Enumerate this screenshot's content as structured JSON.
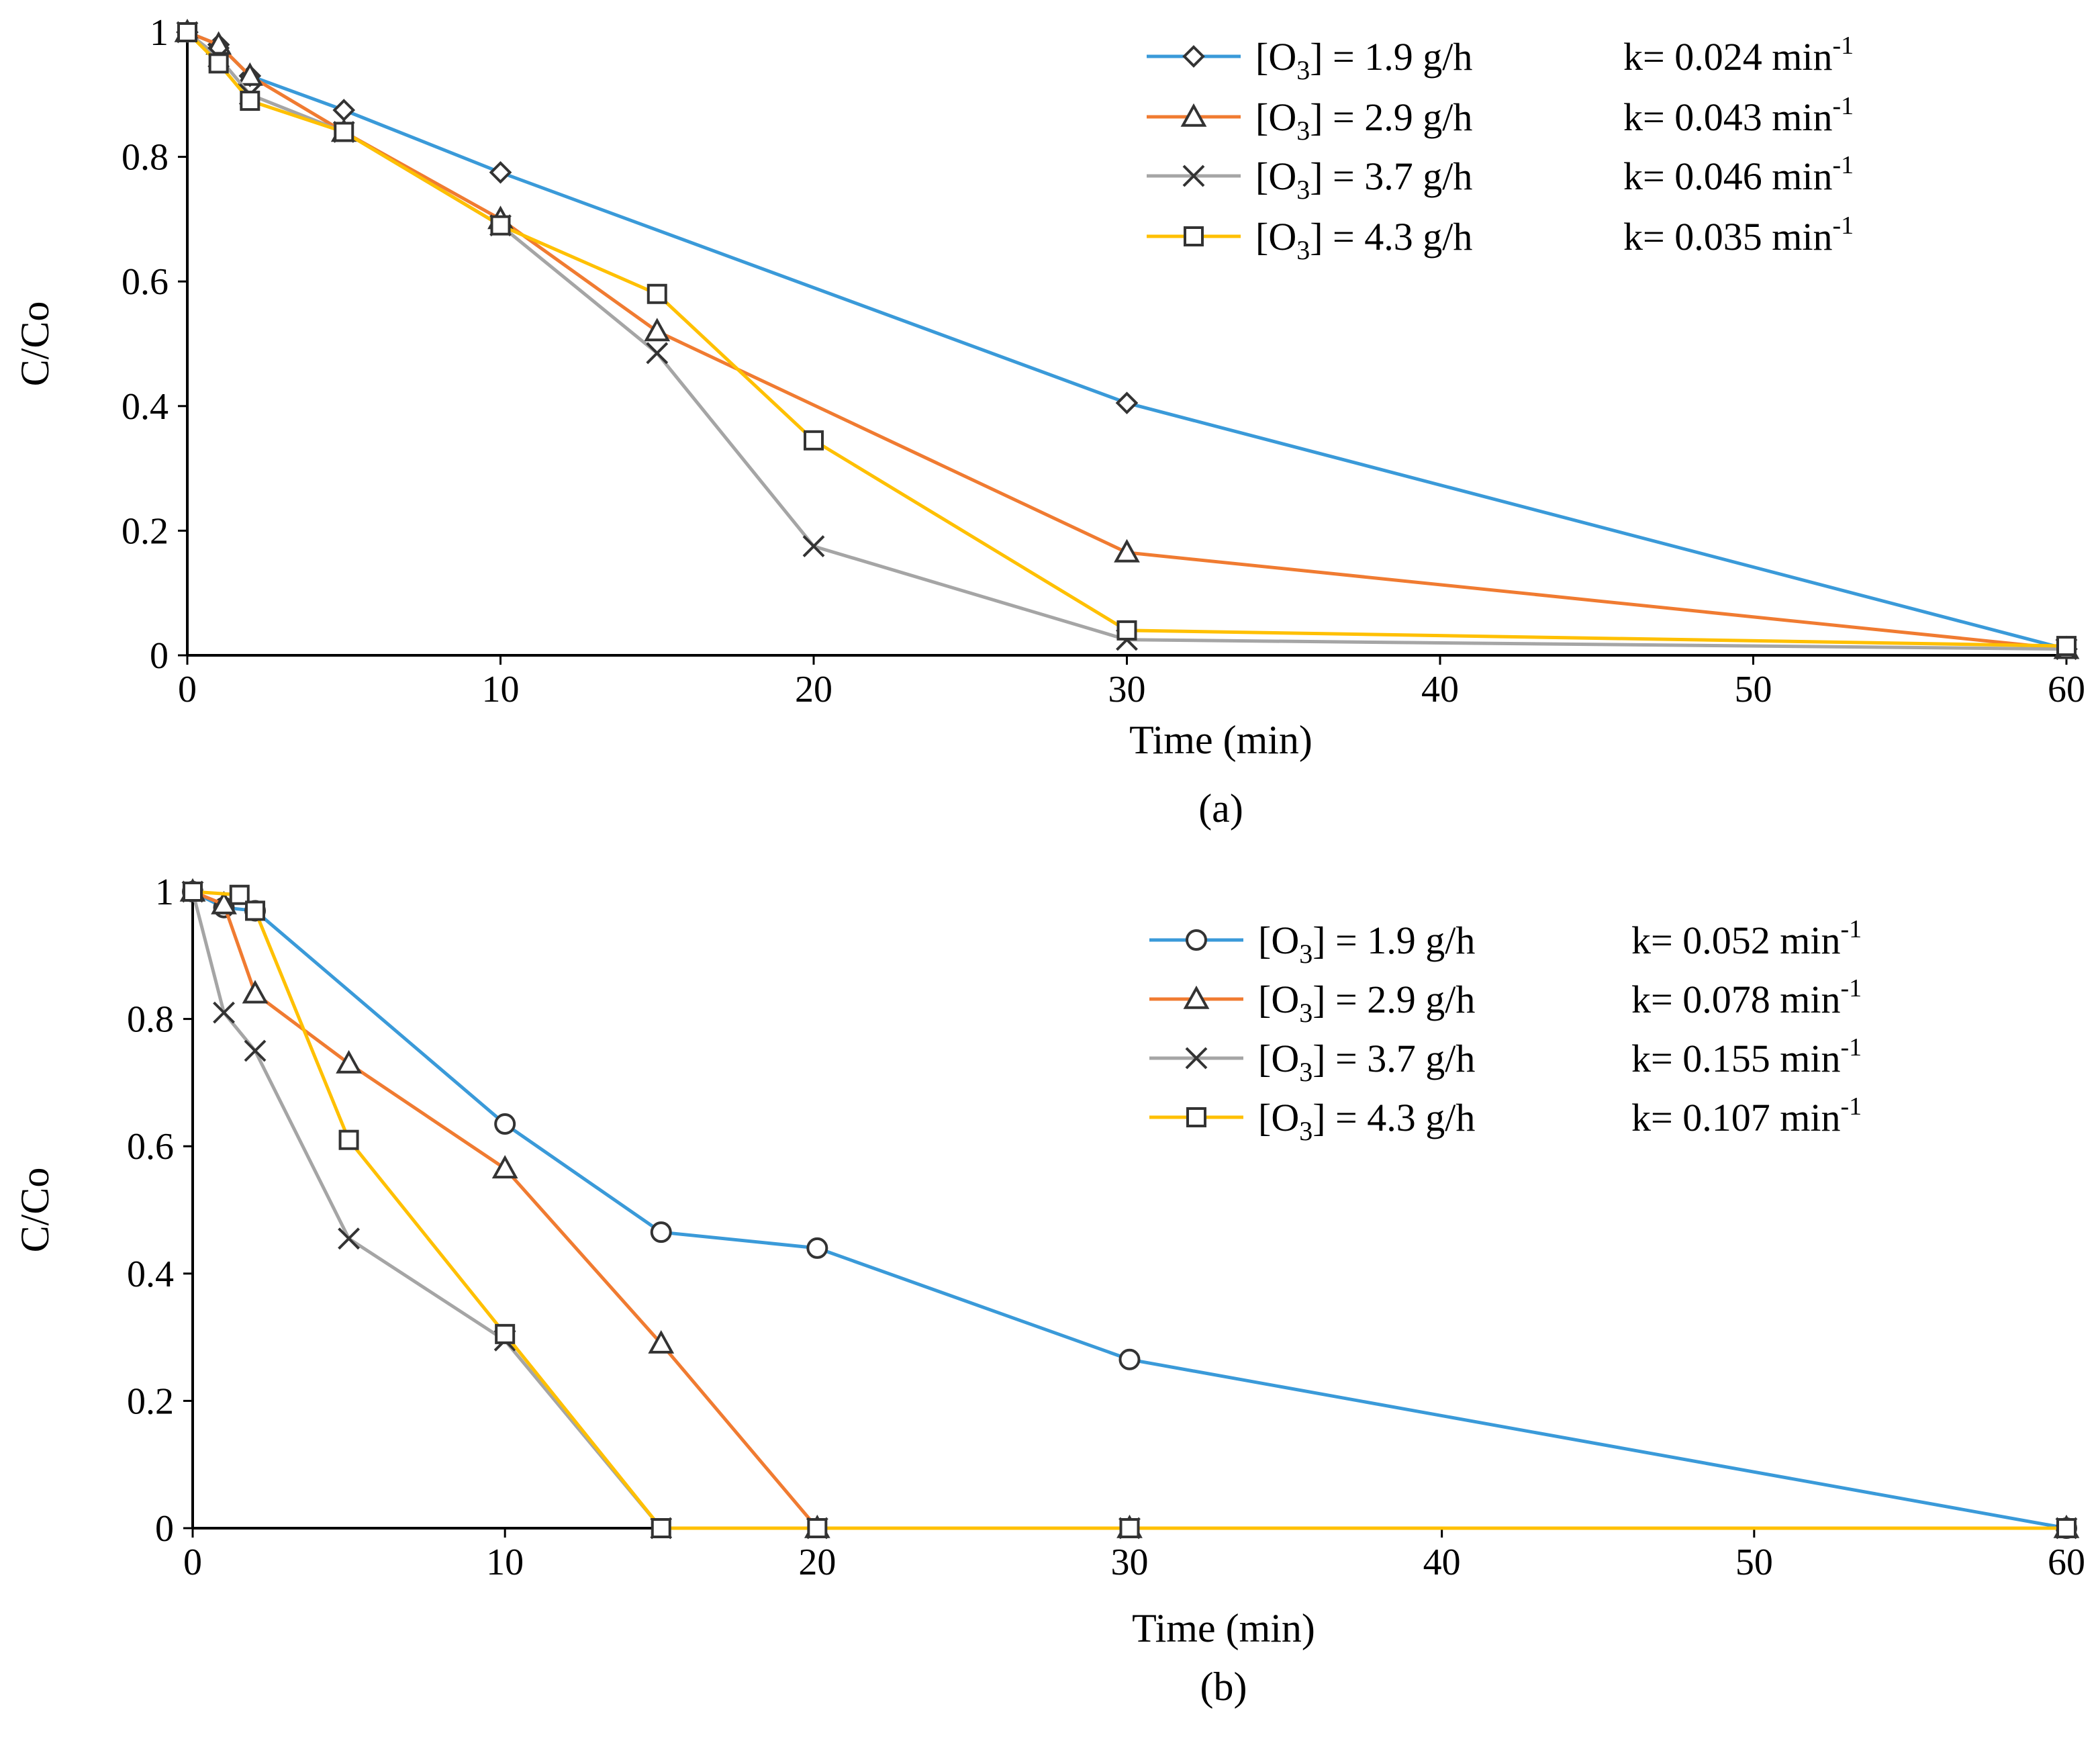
{
  "chart_data": [
    {
      "type": "line",
      "panel_label": "(a)",
      "xlabel": "Time (min)",
      "ylabel": "C/Co",
      "xlim": [
        0,
        60
      ],
      "ylim": [
        0,
        1
      ],
      "xticks": [
        0,
        10,
        20,
        30,
        40,
        50,
        60
      ],
      "yticks": [
        0,
        0.2,
        0.4,
        0.6,
        0.8,
        1
      ],
      "ytick_labels": [
        "0",
        "0.2",
        "0.4",
        "0.6",
        "0.8",
        "1"
      ],
      "legend_position": "top-right",
      "series": [
        {
          "name": "[O3] = 1.9 g/h",
          "k_label": "k= 0.024 min-1",
          "color": "#3A9AD9",
          "marker": "diamond",
          "x": [
            0,
            1,
            2,
            5,
            10,
            30,
            60
          ],
          "y": [
            1.0,
            0.98,
            0.93,
            0.875,
            0.775,
            0.405,
            0.01
          ]
        },
        {
          "name": "[O3] = 2.9 g/h",
          "k_label": "k= 0.043 min-1",
          "color": "#F07B31",
          "marker": "triangle",
          "x": [
            0,
            1,
            2,
            5,
            10,
            15,
            30,
            60
          ],
          "y": [
            1.0,
            0.98,
            0.93,
            0.84,
            0.7,
            0.52,
            0.165,
            0.01
          ]
        },
        {
          "name": "[O3] = 3.7 g/h",
          "k_label": "k= 0.046 min-1",
          "color": "#A5A5A5",
          "marker": "x",
          "x": [
            0,
            1,
            2,
            5,
            10,
            15,
            20,
            30,
            60
          ],
          "y": [
            1.0,
            0.96,
            0.9,
            0.84,
            0.69,
            0.485,
            0.175,
            0.025,
            0.01
          ]
        },
        {
          "name": "[O3] = 4.3 g/h",
          "k_label": "k= 0.035 min-1",
          "color": "#FFC000",
          "marker": "square",
          "x": [
            0,
            1,
            2,
            5,
            10,
            15,
            20,
            30,
            60
          ],
          "y": [
            1.0,
            0.95,
            0.89,
            0.84,
            0.69,
            0.58,
            0.345,
            0.04,
            0.015
          ]
        }
      ]
    },
    {
      "type": "line",
      "panel_label": "(b)",
      "xlabel": "Time (min)",
      "ylabel": "C/Co",
      "xlim": [
        0,
        60
      ],
      "ylim": [
        0,
        1
      ],
      "xticks": [
        0,
        10,
        20,
        30,
        40,
        50,
        60
      ],
      "yticks": [
        0,
        0.2,
        0.4,
        0.6,
        0.8,
        1
      ],
      "ytick_labels": [
        "0",
        "0.2",
        "0.4",
        "0.6",
        "0.8",
        "1"
      ],
      "legend_position": "top-right",
      "series": [
        {
          "name": "[O3] = 1.9 g/h",
          "k_label": "k= 0.052 min-1",
          "color": "#3A9AD9",
          "marker": "circle",
          "x": [
            0,
            1,
            2,
            10,
            15,
            20,
            30,
            60
          ],
          "y": [
            1.0,
            0.975,
            0.97,
            0.635,
            0.465,
            0.44,
            0.265,
            0.0
          ]
        },
        {
          "name": "[O3] = 2.9 g/h",
          "k_label": "k= 0.078 min-1",
          "color": "#F07B31",
          "marker": "triangle",
          "x": [
            0,
            1,
            2,
            5,
            10,
            15,
            20,
            30,
            60
          ],
          "y": [
            1.0,
            0.98,
            0.84,
            0.73,
            0.565,
            0.29,
            0.0,
            0.0,
            0.0
          ]
        },
        {
          "name": "[O3] = 3.7 g/h",
          "k_label": "k= 0.155 min-1",
          "color": "#A5A5A5",
          "marker": "x",
          "x": [
            0,
            1,
            2,
            5,
            10,
            15,
            20,
            30,
            60
          ],
          "y": [
            1.0,
            0.81,
            0.75,
            0.455,
            0.295,
            0.0,
            0.0,
            0.0,
            0.0
          ]
        },
        {
          "name": "[O3] = 4.3 g/h",
          "k_label": "k= 0.107 min-1",
          "color": "#FFC000",
          "marker": "square",
          "x": [
            0,
            1.5,
            2,
            5,
            10,
            15,
            20,
            30,
            60
          ],
          "y": [
            1.0,
            0.995,
            0.97,
            0.61,
            0.305,
            0.0,
            0.0,
            0.0,
            0.0
          ]
        }
      ]
    }
  ]
}
